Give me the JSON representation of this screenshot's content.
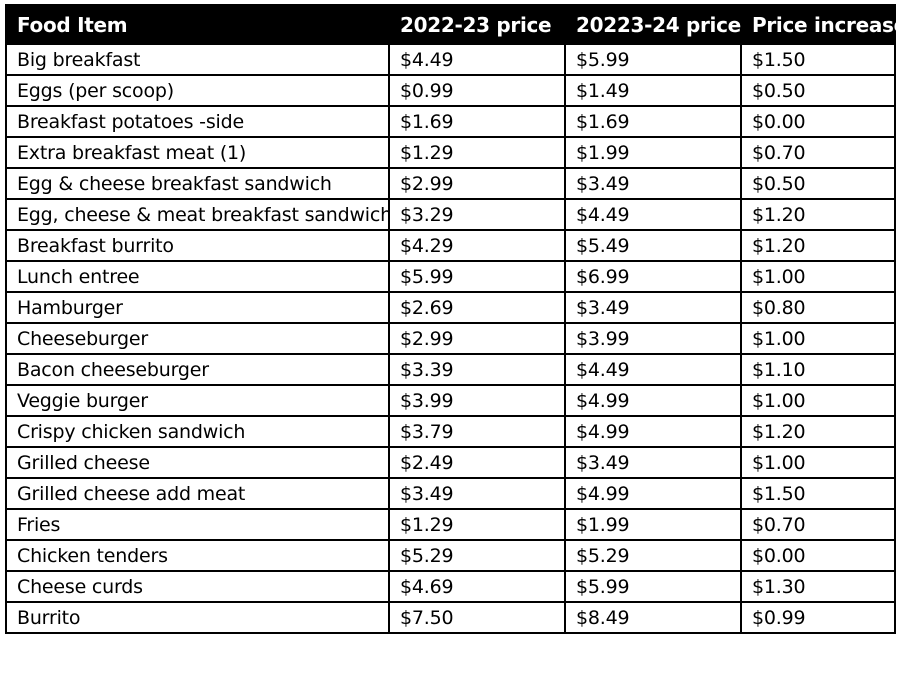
{
  "table": {
    "headers": [
      "Food Item",
      "2022-23 price",
      "20223-24 price",
      "Price increase"
    ],
    "rows": [
      [
        "Big breakfast",
        "$4.49",
        "$5.99",
        "$1.50"
      ],
      [
        "Eggs (per scoop)",
        "$0.99",
        "$1.49",
        "$0.50"
      ],
      [
        "Breakfast potatoes -side",
        "$1.69",
        "$1.69",
        "$0.00"
      ],
      [
        "Extra breakfast meat (1)",
        "$1.29",
        "$1.99",
        "$0.70"
      ],
      [
        "Egg & cheese breakfast sandwich",
        "$2.99",
        "$3.49",
        "$0.50"
      ],
      [
        "Egg, cheese & meat breakfast sandwich",
        "$3.29",
        "$4.49",
        "$1.20"
      ],
      [
        "Breakfast burrito",
        "$4.29",
        "$5.49",
        "$1.20"
      ],
      [
        "Lunch entree",
        "$5.99",
        "$6.99",
        "$1.00"
      ],
      [
        "Hamburger",
        "$2.69",
        "$3.49",
        "$0.80"
      ],
      [
        "Cheeseburger",
        "$2.99",
        "$3.99",
        "$1.00"
      ],
      [
        "Bacon cheeseburger",
        "$3.39",
        "$4.49",
        "$1.10"
      ],
      [
        "Veggie burger",
        "$3.99",
        "$4.99",
        "$1.00"
      ],
      [
        "Crispy chicken sandwich",
        "$3.79",
        "$4.99",
        "$1.20"
      ],
      [
        "Grilled cheese",
        "$2.49",
        "$3.49",
        "$1.00"
      ],
      [
        "Grilled cheese add meat",
        "$3.49",
        "$4.99",
        "$1.50"
      ],
      [
        "Fries",
        "$1.29",
        "$1.99",
        "$0.70"
      ],
      [
        "Chicken tenders",
        "$5.29",
        "$5.29",
        "$0.00"
      ],
      [
        "Cheese curds",
        "$4.69",
        "$5.99",
        "$1.30"
      ],
      [
        "Burrito",
        "$7.50",
        "$8.49",
        "$0.99"
      ]
    ]
  },
  "colors": {
    "header_background": "#000000",
    "header_text": "#ffffff",
    "body_text": "#000000",
    "grid_lines": "#000000"
  }
}
